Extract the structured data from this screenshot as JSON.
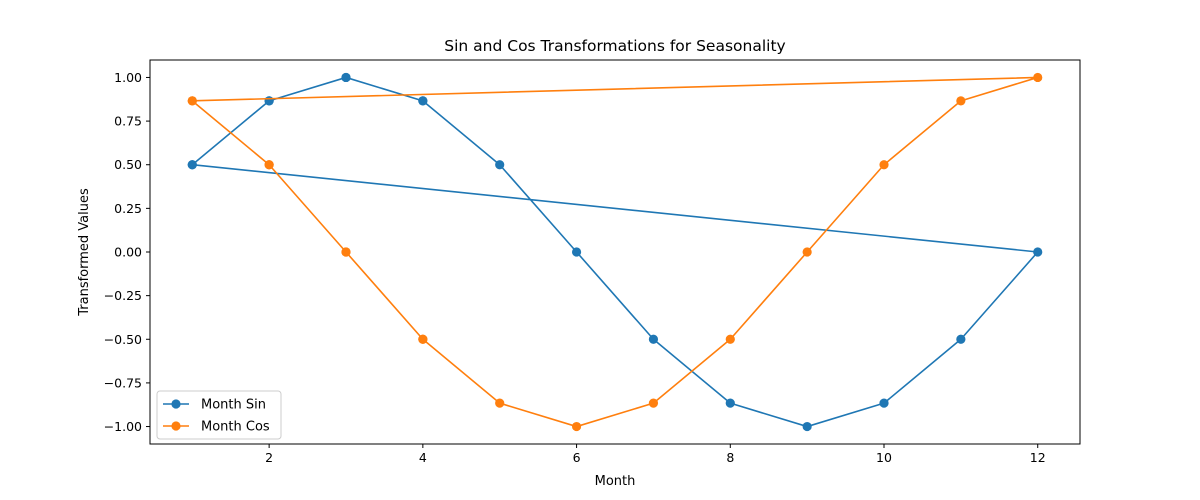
{
  "chart_data": {
    "type": "line",
    "title": "Sin and Cos Transformations for Seasonality",
    "xlabel": "Month",
    "ylabel": "Transformed Values",
    "xlim": [
      0.45,
      12.55
    ],
    "ylim": [
      -1.1,
      1.1
    ],
    "xticks": [
      2,
      4,
      6,
      8,
      10,
      12
    ],
    "yticks": [
      -1.0,
      -0.75,
      -0.5,
      -0.25,
      0.0,
      0.25,
      0.5,
      0.75,
      1.0
    ],
    "grid": false,
    "legend_position": "lower-left",
    "series": [
      {
        "name": "Month Sin",
        "color": "#1f77b4",
        "marker": "circle",
        "points": [
          [
            1,
            0.5
          ],
          [
            2,
            0.866
          ],
          [
            3,
            1.0
          ],
          [
            4,
            0.866
          ],
          [
            5,
            0.5
          ],
          [
            6,
            0.0
          ],
          [
            7,
            -0.5
          ],
          [
            8,
            -0.866
          ],
          [
            9,
            -1.0
          ],
          [
            10,
            -0.866
          ],
          [
            11,
            -0.5
          ],
          [
            12,
            0.0
          ],
          [
            1,
            0.5
          ],
          [
            2,
            0.866
          ],
          [
            3,
            1.0
          ],
          [
            4,
            0.866
          ]
        ]
      },
      {
        "name": "Month Cos",
        "color": "#ff7f0e",
        "marker": "circle",
        "points": [
          [
            1,
            0.866
          ],
          [
            2,
            0.5
          ],
          [
            3,
            0.0
          ],
          [
            4,
            -0.5
          ],
          [
            5,
            -0.866
          ],
          [
            6,
            -1.0
          ],
          [
            7,
            -0.866
          ],
          [
            8,
            -0.5
          ],
          [
            9,
            0.0
          ],
          [
            10,
            0.5
          ],
          [
            11,
            0.866
          ],
          [
            12,
            1.0
          ],
          [
            1,
            0.866
          ],
          [
            2,
            0.5
          ],
          [
            3,
            0.0
          ],
          [
            4,
            -0.5
          ]
        ]
      }
    ]
  }
}
